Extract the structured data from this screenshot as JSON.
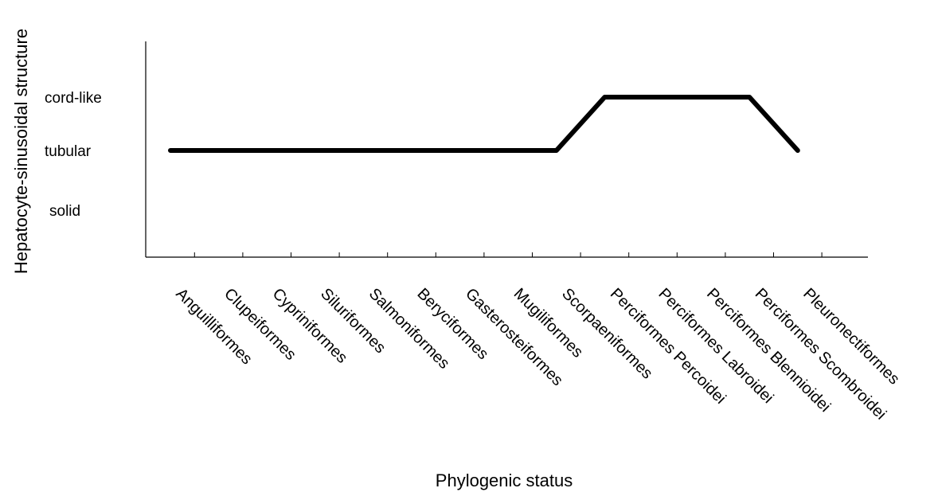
{
  "chart_data": {
    "type": "line",
    "xlabel": "Phylogenic status",
    "ylabel": "Hepatocyte-sinusoidal structure",
    "categories": [
      "Anguilliformes",
      "Clupeiformes",
      "Cypriniformes",
      "Siluriformes",
      "Salmoniformes",
      "Beryciformes",
      "Gasterosteiformes",
      "Mugiliformes",
      "Scorpaeniformes",
      "Perciformes Percoidei",
      "Perciformes Labroidei",
      "Perciformes Blennioidei",
      "Perciformes Scombroidei",
      "Pleuronectiformes"
    ],
    "y_levels": [
      "solid",
      "tubular",
      "cord-like"
    ],
    "series": [
      {
        "values": [
          "tubular",
          "tubular",
          "tubular",
          "tubular",
          "tubular",
          "tubular",
          "tubular",
          "tubular",
          "tubular",
          "cord-like",
          "cord-like",
          "cord-like",
          "cord-like",
          "tubular"
        ]
      }
    ],
    "line_color": "#000000",
    "grid": false,
    "legend": "none"
  }
}
